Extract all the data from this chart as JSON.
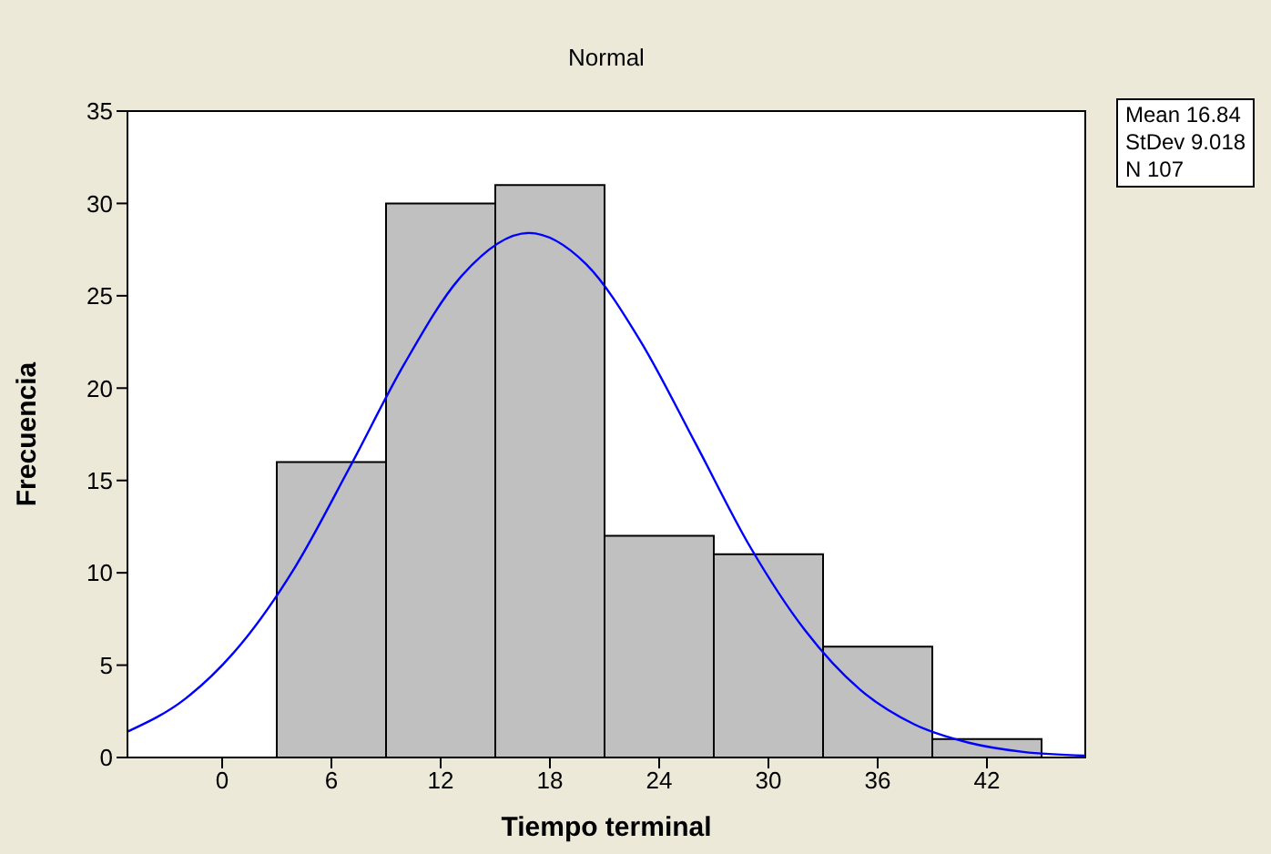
{
  "chart_data": {
    "type": "histogram",
    "title": "Normal",
    "xlabel": "Tiempo terminal",
    "ylabel": "Frecuencia",
    "bins": [
      3,
      9,
      15,
      21,
      27,
      33,
      39,
      45
    ],
    "values": [
      16,
      30,
      31,
      12,
      11,
      6,
      1
    ],
    "color": "#c0c0c0",
    "series": [
      {
        "type": "line",
        "color": "#0000ff",
        "x": [
          -5.2,
          -2,
          1,
          4,
          7,
          10,
          13,
          16.84,
          20,
          23,
          26,
          29,
          32,
          35,
          38,
          41,
          44,
          47.4
        ],
        "values": [
          1.4,
          3.2,
          6.1,
          10.3,
          15.7,
          21.3,
          25.9,
          28.4,
          26.7,
          22.5,
          17,
          11.4,
          6.9,
          3.7,
          1.8,
          0.8,
          0.3,
          0.1
        ]
      }
    ],
    "xlim": [
      -5.2,
      47.4
    ],
    "xticks": [
      0,
      6,
      12,
      18,
      24,
      30,
      36,
      42
    ],
    "ylim": [
      0,
      35
    ],
    "yticks": [
      0,
      5,
      10,
      15,
      20,
      25,
      30,
      35
    ],
    "marker": "none",
    "annotations": [
      "Mean 16.84",
      "StDev 9.018",
      "N 107"
    ]
  }
}
